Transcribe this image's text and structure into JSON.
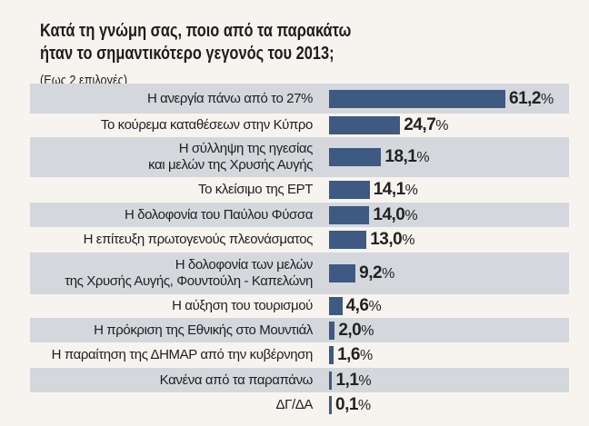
{
  "chart_data": {
    "type": "bar",
    "orientation": "horizontal",
    "title": "Κατά τη γνώμη σας, ποιο από τα παρακάτω ήταν το σημαντικότερο γεγονός του 2013;",
    "title_lines": [
      "Κατά τη γνώμη σας, ποιο από τα παρακάτω",
      "ήταν το σημαντικότερο γεγονός του 2013;"
    ],
    "subtitle": "(Εως 2 επιλογές)",
    "unit": "%",
    "categories": [
      [
        "Η ανεργία πάνω από το 27%"
      ],
      [
        "Το κούρεμα καταθέσεων στην Κύπρο"
      ],
      [
        "Η σύλληψη της ηγεσίας",
        "και μελών της Χρυσής Αυγής"
      ],
      [
        "Το κλείσιμο της ΕΡΤ"
      ],
      [
        "Η δολοφονία του Παύλου Φύσσα"
      ],
      [
        "Η επίτευξη πρωτογενούς πλεονάσματος"
      ],
      [
        "Η δολοφονία των μελών",
        "της Χρυσής Αυγής, Φουντούλη - Καπελώνη"
      ],
      [
        "Η αύξηση του τουρισμού"
      ],
      [
        "Η πρόκριση της Εθνικής στο Μουντιάλ"
      ],
      [
        "Η παραίτηση της ΔΗΜΑΡ από την κυβέρνηση"
      ],
      [
        "Κανένα από τα παραπάνω"
      ],
      [
        "ΔΓ/ΔΑ"
      ]
    ],
    "values": [
      61.2,
      24.7,
      18.1,
      14.1,
      14.0,
      13.0,
      9.2,
      4.6,
      2.0,
      1.6,
      1.1,
      0.1
    ],
    "value_labels": [
      "61,2",
      "24,7",
      "18,1",
      "14,1",
      "14,0",
      "13,0",
      "9,2",
      "4,6",
      "2,0",
      "1,6",
      "1,1",
      "0,1"
    ],
    "grid": false,
    "legend": "none",
    "colors": {
      "bar": "#3e5a82",
      "stripe": "#d4d8dd",
      "background": "#f7f4ef"
    }
  }
}
